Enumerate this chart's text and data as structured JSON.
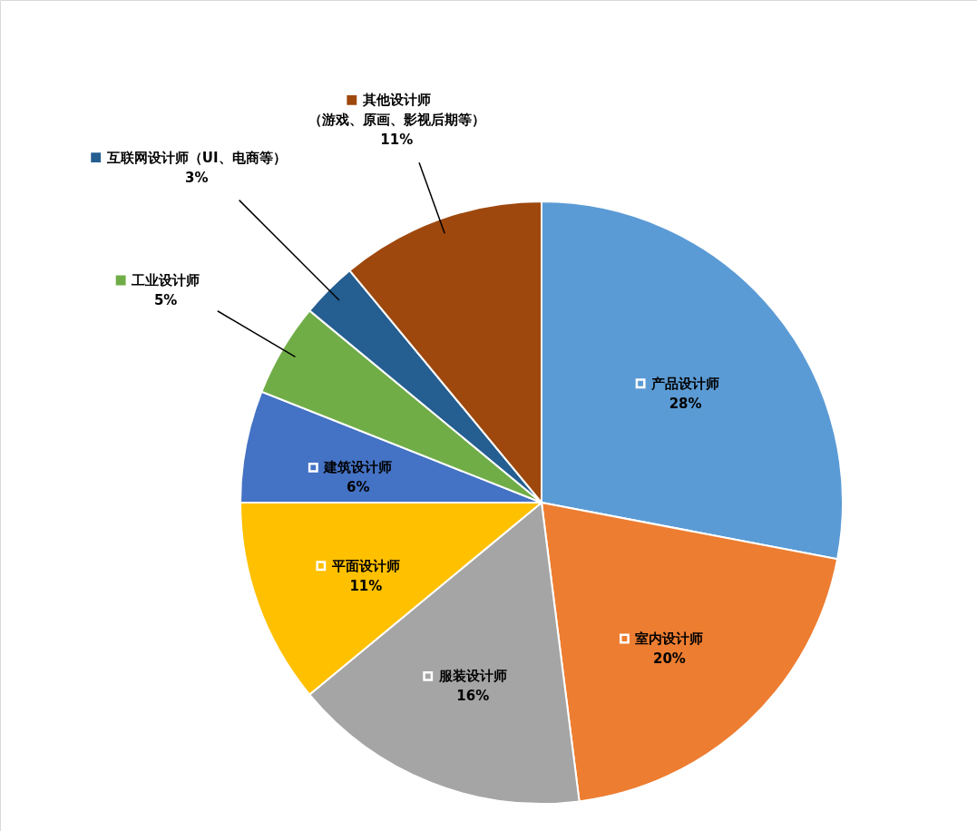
{
  "chart_data": {
    "type": "pie",
    "categories": [
      "产品设计师",
      "室内设计师",
      "服装设计师",
      "平面设计师",
      "建筑设计师",
      "工业设计师",
      "互联网设计师（UI、电商等）",
      "其他设计师（游戏、原画、影视后期等）"
    ],
    "values": [
      28,
      20,
      16,
      11,
      6,
      5,
      3,
      11
    ],
    "value_labels": [
      "28%",
      "20%",
      "16%",
      "11%",
      "6%",
      "5%",
      "3%",
      "11%"
    ],
    "colors": [
      "#5b9bd5",
      "#ed7d31",
      "#a5a5a5",
      "#ffc000",
      "#4472c4",
      "#70ad47",
      "#255e91",
      "#9e480e"
    ],
    "legend": "top left"
  }
}
